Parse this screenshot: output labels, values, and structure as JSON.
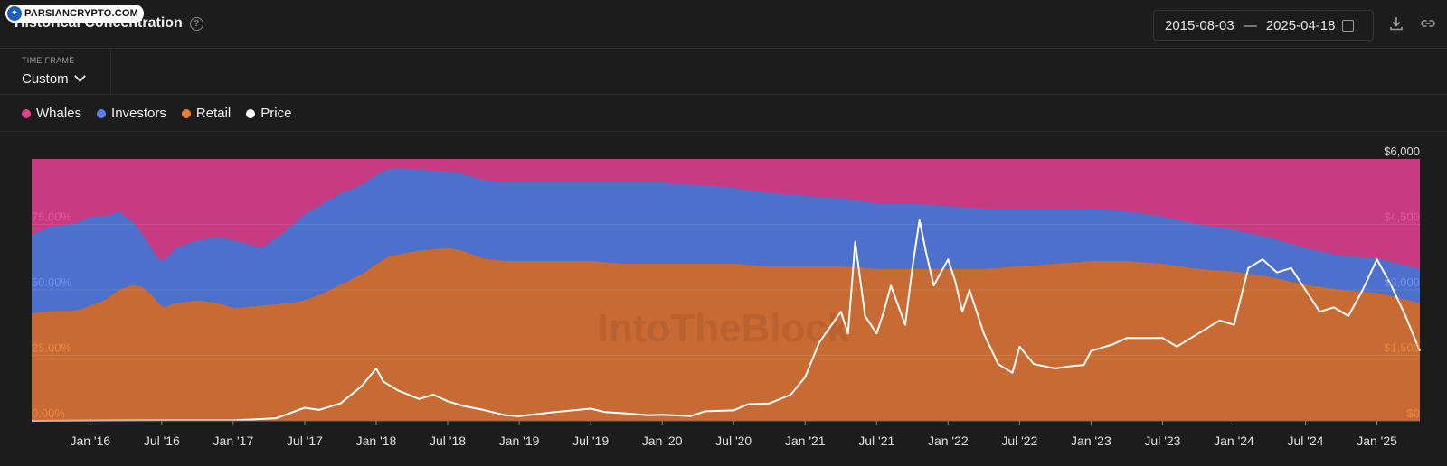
{
  "badge": {
    "text": "PARSIANCRYPTO.COM"
  },
  "header": {
    "title": "Historical Concentration",
    "help": "?"
  },
  "date_range": {
    "start": "2015-08-03",
    "separator": "—",
    "end": "2025-04-18"
  },
  "time_frame": {
    "label": "TIME FRAME",
    "value": "Custom"
  },
  "legend": [
    {
      "label": "Whales",
      "color": "#e0428f"
    },
    {
      "label": "Investors",
      "color": "#5a7fe6"
    },
    {
      "label": "Retail",
      "color": "#ef7f2f"
    },
    {
      "label": "Price",
      "color": "#ffffff"
    }
  ],
  "chart_data": {
    "type": "area",
    "title": "Historical Concentration",
    "stacked": true,
    "x_ticks": [
      "Jan '16",
      "Jul '16",
      "Jan '17",
      "Jul '17",
      "Jan '18",
      "Jul '18",
      "Jan '19",
      "Jul '19",
      "Jan '20",
      "Jul '20",
      "Jan '21",
      "Jul '21",
      "Jan '22",
      "Jul '22",
      "Jan '23",
      "Jul '23",
      "Jan '24",
      "Jul '24",
      "Jan '25"
    ],
    "y_left_ticks": [
      "0.00%",
      "25.00%",
      "50.00%",
      "75.00%"
    ],
    "y_left_range": [
      0,
      100
    ],
    "y_right_ticks": [
      "$0",
      "$1,500",
      "$3,000",
      "$4,500",
      "$6,000"
    ],
    "y_right_range": [
      0,
      6000
    ],
    "x_range": [
      2015.59,
      2025.3
    ],
    "colors": {
      "whales": "#c73b82",
      "investors": "#4c70cc",
      "retail": "#c86a33",
      "price": "#ffffff"
    },
    "watermark": "IntoTheBlock",
    "series": [
      {
        "name": "Retail",
        "axis": "left-percent",
        "x": [
          2015.59,
          2015.75,
          2015.9,
          2016.0,
          2016.1,
          2016.2,
          2016.3,
          2016.37,
          2016.45,
          2016.5,
          2016.6,
          2016.75,
          2016.9,
          2017.0,
          2017.2,
          2017.4,
          2017.5,
          2017.6,
          2017.75,
          2017.9,
          2018.0,
          2018.1,
          2018.3,
          2018.5,
          2018.6,
          2018.75,
          2018.9,
          2019.0,
          2019.25,
          2019.5,
          2019.75,
          2020.0,
          2020.25,
          2020.5,
          2020.75,
          2021.0,
          2021.25,
          2021.5,
          2021.75,
          2022.0,
          2022.25,
          2022.5,
          2022.75,
          2023.0,
          2023.25,
          2023.5,
          2023.75,
          2024.0,
          2024.25,
          2024.5,
          2024.75,
          2025.0,
          2025.15,
          2025.3
        ],
        "values": [
          41,
          42,
          42,
          44,
          46,
          50,
          52,
          51,
          47,
          43,
          45,
          46,
          45,
          43,
          44,
          45,
          46,
          48,
          52,
          56,
          60,
          63,
          65,
          66,
          65,
          62,
          61,
          61,
          61,
          61,
          60,
          60,
          60,
          60,
          59,
          59,
          59,
          58,
          58,
          58,
          58,
          59,
          60,
          61,
          61,
          60,
          58,
          57,
          55,
          52,
          50,
          49,
          47,
          45
        ]
      },
      {
        "name": "Investors",
        "axis": "left-percent",
        "x": [
          2015.59,
          2015.7,
          2015.85,
          2016.0,
          2016.2,
          2016.3,
          2016.37,
          2016.45,
          2016.5,
          2016.6,
          2016.75,
          2016.9,
          2017.0,
          2017.1,
          2017.2,
          2017.35,
          2017.5,
          2017.6,
          2017.75,
          2017.9,
          2018.0,
          2018.15,
          2018.3,
          2018.5,
          2018.75,
          2019.0,
          2019.25,
          2019.5,
          2019.75,
          2020.0,
          2020.25,
          2020.5,
          2020.75,
          2021.0,
          2021.25,
          2021.5,
          2021.75,
          2022.0,
          2022.25,
          2022.5,
          2022.75,
          2023.0,
          2023.25,
          2023.5,
          2023.75,
          2024.0,
          2024.25,
          2024.5,
          2024.75,
          2025.0,
          2025.15,
          2025.3
        ],
        "values": [
          30,
          32,
          33,
          34,
          30,
          24,
          20,
          17,
          17,
          21,
          23,
          25,
          26,
          24,
          22,
          27,
          33,
          34,
          35,
          34,
          34,
          33,
          31,
          29,
          30,
          30,
          30,
          30,
          31,
          31,
          30,
          29,
          28,
          27,
          26,
          25,
          25,
          24,
          23,
          22,
          21,
          20,
          19,
          18,
          17,
          16,
          15,
          14,
          13,
          13,
          13,
          13
        ]
      },
      {
        "name": "Whales",
        "axis": "left-percent",
        "x": [
          2015.59,
          2025.3
        ],
        "values": [
          29,
          42
        ]
      },
      {
        "name": "Price",
        "axis": "right-dollar",
        "x": [
          2015.59,
          2016.5,
          2017.0,
          2017.3,
          2017.5,
          2017.6,
          2017.75,
          2017.9,
          2018.0,
          2018.05,
          2018.15,
          2018.3,
          2018.4,
          2018.5,
          2018.6,
          2018.75,
          2018.9,
          2019.0,
          2019.25,
          2019.5,
          2019.6,
          2019.75,
          2019.9,
          2020.0,
          2020.2,
          2020.3,
          2020.5,
          2020.6,
          2020.75,
          2020.9,
          2021.0,
          2021.1,
          2021.25,
          2021.3,
          2021.35,
          2021.42,
          2021.5,
          2021.55,
          2021.6,
          2021.7,
          2021.75,
          2021.8,
          2021.85,
          2021.9,
          2022.0,
          2022.05,
          2022.1,
          2022.15,
          2022.25,
          2022.35,
          2022.45,
          2022.5,
          2022.6,
          2022.75,
          2022.85,
          2022.95,
          2023.0,
          2023.15,
          2023.25,
          2023.4,
          2023.5,
          2023.6,
          2023.75,
          2023.9,
          2024.0,
          2024.1,
          2024.2,
          2024.3,
          2024.4,
          2024.5,
          2024.6,
          2024.7,
          2024.8,
          2024.9,
          2025.0,
          2025.1,
          2025.2,
          2025.3
        ],
        "values": [
          0,
          10,
          10,
          60,
          300,
          250,
          400,
          800,
          1200,
          900,
          700,
          500,
          600,
          450,
          350,
          250,
          130,
          110,
          200,
          280,
          200,
          170,
          130,
          140,
          110,
          220,
          240,
          380,
          400,
          600,
          1000,
          1800,
          2500,
          2000,
          4100,
          2400,
          2000,
          2500,
          3100,
          2200,
          3500,
          4600,
          3800,
          3100,
          3700,
          3200,
          2500,
          3000,
          2000,
          1300,
          1100,
          1700,
          1300,
          1200,
          1250,
          1280,
          1600,
          1750,
          1900,
          1900,
          1900,
          1700,
          2000,
          2300,
          2200,
          3500,
          3700,
          3400,
          3500,
          3000,
          2500,
          2600,
          2400,
          3000,
          3700,
          3100,
          2400,
          1600
        ]
      }
    ]
  }
}
